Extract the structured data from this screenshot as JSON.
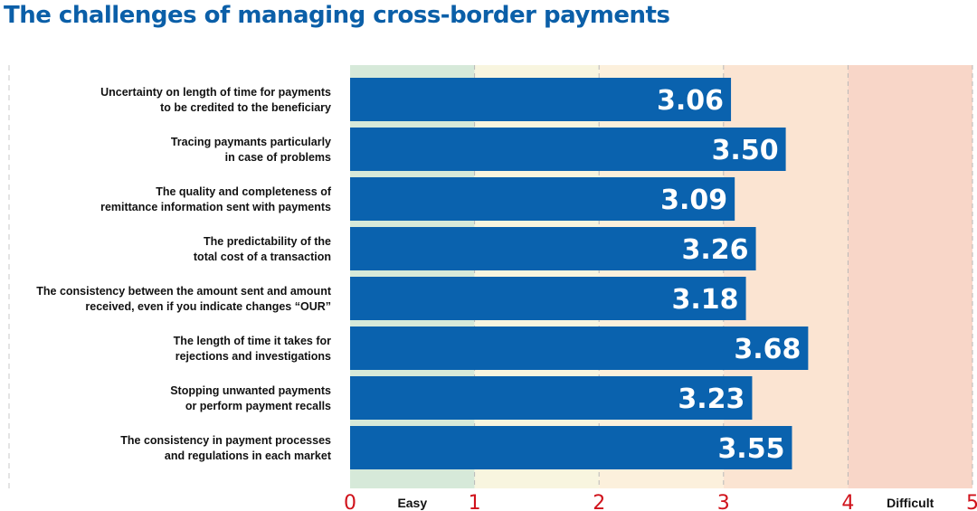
{
  "title": "The challenges of managing cross-border payments",
  "chart_data": {
    "type": "bar",
    "orientation": "horizontal",
    "title": "The challenges of managing cross-border payments",
    "categories": [
      [
        "Uncertainty on length of time for payments",
        "to be credited to the beneficiary"
      ],
      [
        "Tracing paymants particularly",
        "in case of problems"
      ],
      [
        "The quality and completeness of",
        "remittance information sent with payments"
      ],
      [
        "The predictability of the",
        "total cost of a transaction"
      ],
      [
        "The consistency between the amount sent and amount",
        "received, even if you indicate changes “OUR”"
      ],
      [
        "The length of time it takes for",
        "rejections and investigations"
      ],
      [
        "Stopping unwanted payments",
        "or perform payment recalls"
      ],
      [
        "The consistency in payment processes",
        "and regulations in each market"
      ]
    ],
    "values": [
      3.06,
      3.5,
      3.09,
      3.26,
      3.18,
      3.68,
      3.23,
      3.55
    ],
    "value_labels": [
      "3.06",
      "3.50",
      "3.09",
      "3.26",
      "3.18",
      "3.68",
      "3.23",
      "3.55"
    ],
    "xlim": [
      0,
      5
    ],
    "ticks": [
      "0",
      "1",
      "2",
      "3",
      "4",
      "5"
    ],
    "tick_values": [
      0,
      1,
      2,
      3,
      4,
      5
    ],
    "scale_labels": [
      {
        "text": "Easy",
        "at": 0.5
      },
      {
        "text": "Difficult",
        "at": 4.5
      }
    ],
    "grid": true,
    "colors": {
      "bar": "#0a62ae",
      "bar_text": "#ffffff",
      "tick_text": "#d0121b",
      "title": "#0b5fa8",
      "bands": [
        "#d6e9d9",
        "#f8f5df",
        "#fcf0dc",
        "#fbe4d2",
        "#f8d6c8"
      ]
    }
  }
}
